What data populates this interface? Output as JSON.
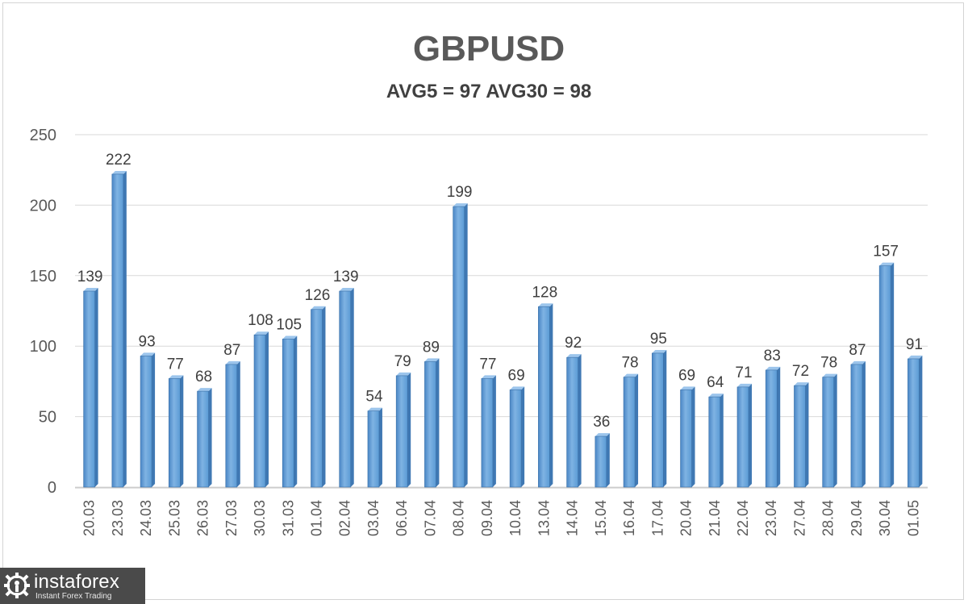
{
  "chart_data": {
    "type": "bar",
    "title": "GBPUSD",
    "subtitle": "AVG5 = 97 AVG30 = 98",
    "xlabel": "",
    "ylabel": "",
    "ylim": [
      0,
      250
    ],
    "yticks": [
      0,
      50,
      100,
      150,
      200,
      250
    ],
    "grid": true,
    "categories": [
      "20.03",
      "23.03",
      "24.03",
      "25.03",
      "26.03",
      "27.03",
      "30.03",
      "31.03",
      "01.04",
      "02.04",
      "03.04",
      "06.04",
      "07.04",
      "08.04",
      "09.04",
      "10.04",
      "13.04",
      "14.04",
      "15.04",
      "16.04",
      "17.04",
      "20.04",
      "21.04",
      "22.04",
      "23.04",
      "27.04",
      "28.04",
      "29.04",
      "30.04",
      "01.05"
    ],
    "values": [
      139,
      222,
      93,
      77,
      68,
      87,
      108,
      105,
      126,
      139,
      54,
      79,
      89,
      199,
      77,
      69,
      128,
      92,
      36,
      78,
      95,
      69,
      64,
      71,
      83,
      72,
      78,
      87,
      157,
      91
    ],
    "bar_color": "#5b9bd5"
  },
  "watermark": {
    "brand": "instaforex",
    "tagline": "Instant Forex Trading"
  }
}
